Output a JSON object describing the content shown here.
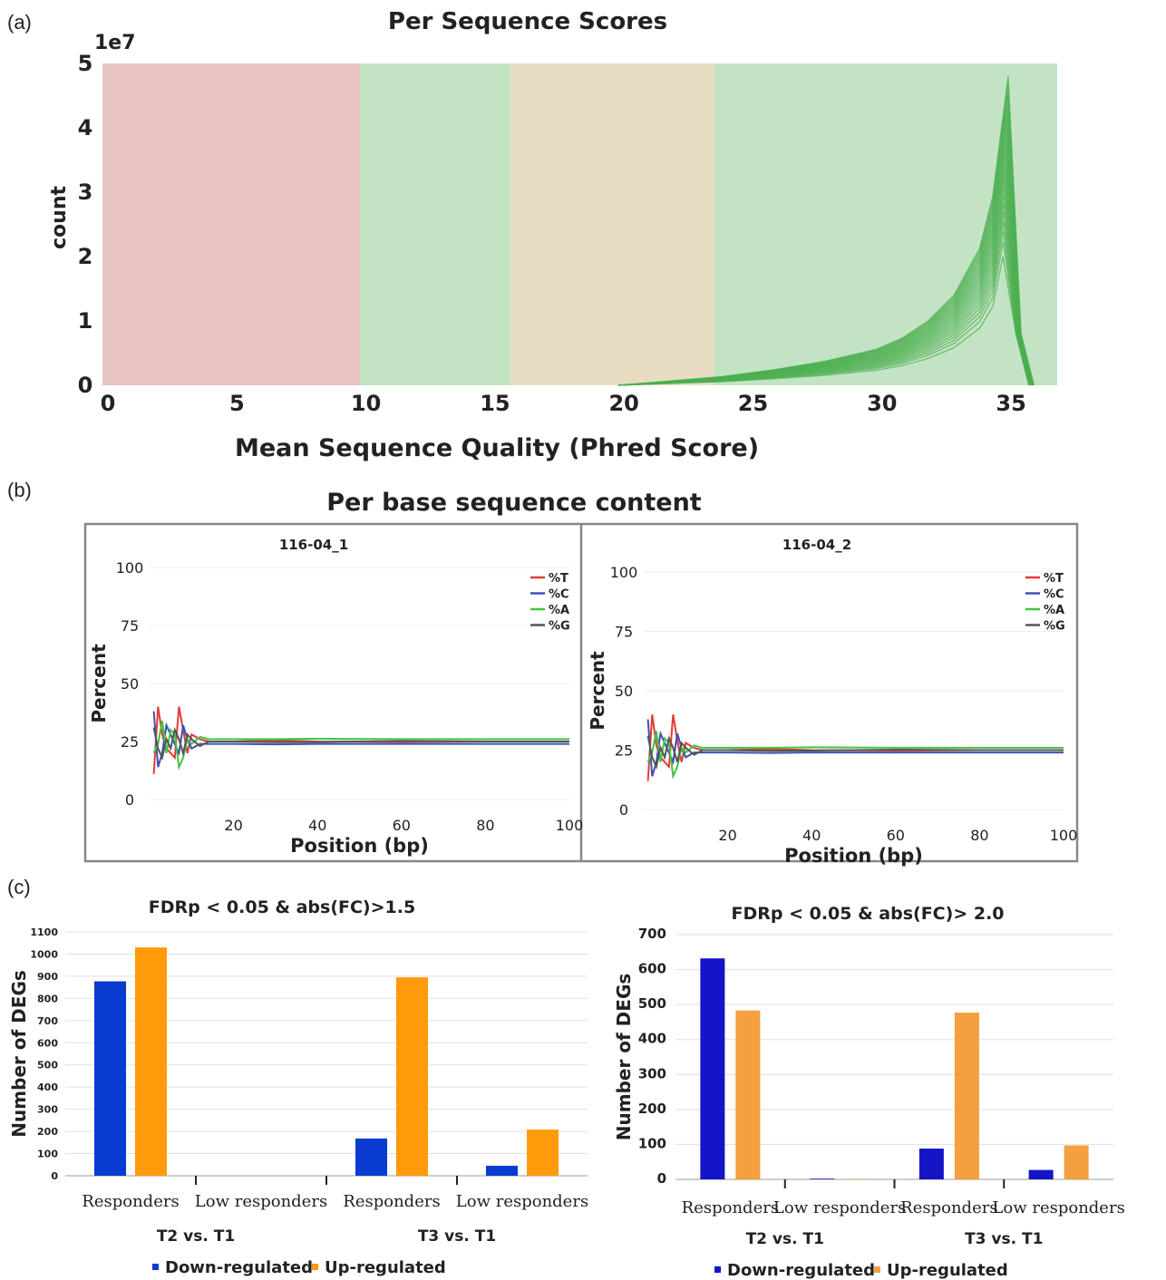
{
  "panel_labels": [
    "(a)",
    "(b)",
    "(c)"
  ],
  "chart_data": [
    {
      "id": "a",
      "type": "line",
      "title": "Per Sequence Scores",
      "xlabel": "Mean Sequence Quality (Phred Score)",
      "ylabel": "count",
      "y_exponent_label": "1e7",
      "xlim": [
        0,
        37
      ],
      "ylim": [
        0,
        5
      ],
      "xticks": [
        0,
        5,
        10,
        15,
        20,
        25,
        30,
        35
      ],
      "yticks": [
        0,
        1,
        2,
        3,
        4,
        5
      ],
      "background_bands": [
        {
          "from": 0,
          "to": 10,
          "color": "#e8c4c2"
        },
        {
          "from": 10,
          "to": 15.8,
          "color": "#c3e4c4"
        },
        {
          "from": 15.8,
          "to": 23.7,
          "color": "#e8dcc3"
        },
        {
          "from": 23.7,
          "to": 37,
          "color": "#c3e4c4"
        }
      ],
      "line_color": "#4caf50",
      "series_template": {
        "x": [
          20,
          22,
          24,
          26,
          28,
          30,
          31,
          32,
          33,
          34,
          34.5,
          35,
          35.5,
          36
        ],
        "y": [
          0,
          0.05,
          0.1,
          0.18,
          0.28,
          0.42,
          0.55,
          0.75,
          1.05,
          1.6,
          2.2,
          3.6,
          0.8,
          0
        ],
        "peak_range": [
          2.0,
          4.8
        ],
        "count": 24
      }
    },
    {
      "id": "b1",
      "type": "line",
      "suptitle": "Per base sequence content",
      "title": "116-04_1",
      "xlabel": "Position (bp)",
      "ylabel": "Percent",
      "xlim": [
        0,
        100
      ],
      "ylim": [
        0,
        100
      ],
      "xticks": [
        20,
        40,
        60,
        80,
        100
      ],
      "yticks": [
        0,
        25,
        50,
        75,
        100
      ],
      "series": [
        {
          "name": "%T",
          "color": "#e53935",
          "x": [
            1,
            2,
            3,
            4,
            5,
            6,
            7,
            8,
            9,
            10,
            12,
            14,
            16,
            20,
            30,
            40,
            60,
            80,
            100
          ],
          "y": [
            11,
            40,
            28,
            22,
            20,
            18,
            40,
            30,
            20,
            28,
            26,
            25,
            25,
            25,
            25.5,
            25,
            24.8,
            25,
            25
          ]
        },
        {
          "name": "%C",
          "color": "#3f51b5",
          "x": [
            1,
            2,
            3,
            4,
            5,
            6,
            7,
            8,
            9,
            10,
            12,
            14,
            16,
            20,
            30,
            40,
            60,
            80,
            100
          ],
          "y": [
            38,
            14,
            20,
            32,
            28,
            24,
            20,
            32,
            26,
            22,
            24,
            24,
            24,
            24,
            23.8,
            24,
            24,
            24,
            24
          ]
        },
        {
          "name": "%A",
          "color": "#43c443",
          "x": [
            1,
            2,
            3,
            4,
            5,
            6,
            7,
            8,
            9,
            10,
            12,
            14,
            16,
            20,
            30,
            40,
            60,
            80,
            100
          ],
          "y": [
            20,
            24,
            34,
            20,
            30,
            28,
            14,
            18,
            26,
            24,
            27,
            26,
            26,
            26,
            26,
            26.2,
            26,
            26,
            26
          ]
        },
        {
          "name": "%G",
          "color": "#555555",
          "x": [
            1,
            2,
            3,
            4,
            5,
            6,
            7,
            8,
            9,
            10,
            12,
            14,
            16,
            20,
            30,
            40,
            60,
            80,
            100
          ],
          "y": [
            31,
            22,
            18,
            26,
            22,
            30,
            26,
            20,
            28,
            26,
            23,
            25,
            25,
            25,
            24.7,
            24.8,
            25.2,
            25,
            25
          ]
        }
      ]
    },
    {
      "id": "b2",
      "type": "line",
      "title": "116-04_2",
      "xlabel": "Position (bp)",
      "ylabel": "Percent",
      "xlim": [
        0,
        100
      ],
      "ylim": [
        0,
        100
      ],
      "xticks": [
        20,
        40,
        60,
        80,
        100
      ],
      "yticks": [
        0,
        25,
        50,
        75,
        100
      ],
      "series": [
        {
          "name": "%T",
          "color": "#e53935",
          "x": [
            1,
            2,
            3,
            4,
            5,
            6,
            7,
            8,
            9,
            10,
            12,
            14,
            16,
            20,
            30,
            40,
            60,
            80,
            100
          ],
          "y": [
            12,
            40,
            27,
            22,
            20,
            18,
            40,
            29,
            20,
            28,
            26,
            25,
            25,
            25,
            25.5,
            25,
            24.8,
            25,
            25
          ]
        },
        {
          "name": "%C",
          "color": "#3f51b5",
          "x": [
            1,
            2,
            3,
            4,
            5,
            6,
            7,
            8,
            9,
            10,
            12,
            14,
            16,
            20,
            30,
            40,
            60,
            80,
            100
          ],
          "y": [
            38,
            14,
            20,
            32,
            28,
            24,
            20,
            32,
            26,
            22,
            24,
            24,
            24,
            24,
            23.8,
            24,
            24,
            24,
            24
          ]
        },
        {
          "name": "%A",
          "color": "#43c443",
          "x": [
            1,
            2,
            3,
            4,
            5,
            6,
            7,
            8,
            9,
            10,
            12,
            14,
            16,
            20,
            30,
            40,
            60,
            80,
            100
          ],
          "y": [
            20,
            24,
            33,
            20,
            30,
            28,
            14,
            18,
            26,
            24,
            27,
            26,
            26,
            26,
            26,
            26.2,
            26,
            26,
            26
          ]
        },
        {
          "name": "%G",
          "color": "#555555",
          "x": [
            1,
            2,
            3,
            4,
            5,
            6,
            7,
            8,
            9,
            10,
            12,
            14,
            16,
            20,
            30,
            40,
            60,
            80,
            100
          ],
          "y": [
            31,
            22,
            18,
            26,
            22,
            30,
            26,
            20,
            28,
            26,
            23,
            25,
            25,
            25,
            24.7,
            24.8,
            25.2,
            25,
            25
          ]
        }
      ]
    },
    {
      "id": "c1",
      "type": "bar",
      "title": "FDRp < 0.05 & abs(FC)>1.5",
      "ylabel": "Number of DEGs",
      "ylim": [
        0,
        1100
      ],
      "yticks": [
        0,
        100,
        200,
        300,
        400,
        500,
        600,
        700,
        800,
        900,
        1000,
        1100
      ],
      "categories": [
        "Responders",
        "Low responders",
        "Responders",
        "Low responders"
      ],
      "groups": [
        "T2 vs. T1",
        "T3 vs. T1"
      ],
      "series": [
        {
          "name": "Down-regulated",
          "color": "#0a3bd0",
          "values": [
            877,
            0,
            168,
            45
          ]
        },
        {
          "name": "Up-regulated",
          "color": "#ff9a0a",
          "values": [
            1030,
            0,
            895,
            208
          ]
        }
      ]
    },
    {
      "id": "c2",
      "type": "bar",
      "title": "FDRp < 0.05 & abs(FC)> 2.0",
      "ylabel": "Number of DEGs",
      "ylim": [
        0,
        700
      ],
      "yticks": [
        0,
        100,
        200,
        300,
        400,
        500,
        600,
        700
      ],
      "categories": [
        "Responders",
        "Low responders",
        "Responders",
        "Low responders"
      ],
      "groups": [
        "T2 vs. T1",
        "T3 vs. T1"
      ],
      "series": [
        {
          "name": "Down-regulated",
          "color": "#1515c8",
          "values": [
            632,
            2,
            88,
            27
          ]
        },
        {
          "name": "Up-regulated",
          "color": "#f4a040",
          "values": [
            483,
            1,
            477,
            97
          ]
        }
      ]
    }
  ]
}
